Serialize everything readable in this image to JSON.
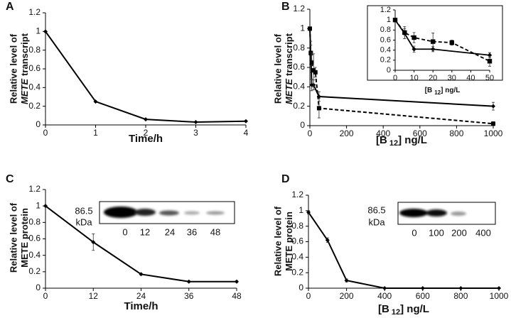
{
  "chart_data": [
    {
      "type": "line",
      "panel_label": "A",
      "ylabel": [
        "Relative level of",
        "METE",
        "transcript"
      ],
      "ylabel_italic": [
        false,
        true,
        false
      ],
      "xlabel": [
        "Time/h"
      ],
      "xlim": [
        0,
        4
      ],
      "xticks": [
        0,
        1,
        2,
        3,
        4
      ],
      "ylim": [
        0,
        1.2
      ],
      "yticks": [
        0,
        0.2,
        0.4,
        0.6,
        0.8,
        1,
        1.2
      ],
      "series": [
        {
          "x": [
            0,
            1,
            2,
            3,
            4
          ],
          "values": [
            1,
            0.25,
            0.06,
            0.03,
            0.04
          ],
          "color": "#000000",
          "dash": false,
          "marker": "diamond"
        }
      ]
    },
    {
      "type": "line",
      "panel_label": "B",
      "ylabel": [
        "Relative level of",
        "METE",
        "transcript"
      ],
      "ylabel_italic": [
        false,
        true,
        false
      ],
      "xlabel": [
        "[B",
        "12",
        "] ng/L"
      ],
      "xlim": [
        0,
        1000
      ],
      "xticks": [
        0,
        200,
        400,
        600,
        800,
        1000
      ],
      "ylim": [
        0,
        1.2
      ],
      "yticks": [
        0,
        0.2,
        0.4,
        0.6,
        0.8,
        1,
        1.2
      ],
      "series": [
        {
          "x": [
            0,
            5,
            10,
            20,
            50,
            1000
          ],
          "values": [
            1,
            0.73,
            0.42,
            0.42,
            0.3,
            0.2
          ],
          "errors": [
            0,
            0.1,
            0.06,
            0.05,
            0.05,
            0.04
          ],
          "color": "#000000",
          "dash": false,
          "marker": "diamond"
        },
        {
          "x": [
            0,
            5,
            10,
            20,
            30,
            50,
            1000
          ],
          "values": [
            1,
            0.75,
            0.65,
            0.57,
            0.55,
            0.18,
            0.02
          ],
          "errors": [
            0,
            0.12,
            0.1,
            0.17,
            0.05,
            0.1,
            0.02
          ],
          "color": "#000000",
          "dash": true,
          "marker": "square"
        }
      ]
    },
    {
      "type": "line",
      "inset": true,
      "xlabel": [
        "[B",
        "12",
        "] ng/L"
      ],
      "xlim": [
        0,
        50
      ],
      "xticks": [
        0,
        10,
        20,
        30,
        40,
        50
      ],
      "ylim": [
        0,
        1.2
      ],
      "yticks": [
        0,
        0.2,
        0.4,
        0.6,
        0.8,
        1,
        1.2
      ],
      "series": [
        {
          "x": [
            0,
            5,
            10,
            20,
            50
          ],
          "values": [
            1,
            0.73,
            0.42,
            0.42,
            0.3
          ],
          "errors": [
            0,
            0.1,
            0.06,
            0.05,
            0.05
          ],
          "color": "#000000",
          "dash": false,
          "marker": "diamond"
        },
        {
          "x": [
            0,
            5,
            10,
            20,
            30,
            50
          ],
          "values": [
            1,
            0.75,
            0.65,
            0.57,
            0.55,
            0.18
          ],
          "errors": [
            0,
            0.12,
            0.1,
            0.17,
            0.05,
            0.1
          ],
          "color": "#000000",
          "dash": true,
          "marker": "square"
        }
      ]
    },
    {
      "type": "line",
      "panel_label": "C",
      "ylabel": [
        "Relative level of",
        "METE protein"
      ],
      "ylabel_italic": [
        false,
        false
      ],
      "xlabel": [
        "Time/h"
      ],
      "xlim": [
        0,
        48
      ],
      "xticks": [
        0,
        12,
        24,
        36,
        48
      ],
      "ylim": [
        0,
        1.2
      ],
      "yticks": [
        0,
        0.2,
        0.4,
        0.6,
        0.8,
        1,
        1.2
      ],
      "series": [
        {
          "x": [
            0,
            12,
            24,
            36,
            48
          ],
          "values": [
            1,
            0.56,
            0.17,
            0.08,
            0.08
          ],
          "errors": [
            0,
            0.1,
            0.01,
            0.01,
            0.01
          ],
          "color": "#000000",
          "dash": false,
          "marker": "diamond"
        }
      ],
      "blot": {
        "size": "86.5",
        "unit": "kDa",
        "lanes": [
          "0",
          "12",
          "24",
          "36",
          "48"
        ]
      }
    },
    {
      "type": "line",
      "panel_label": "D",
      "ylabel": [
        "Relative level of",
        "METE protein"
      ],
      "ylabel_italic": [
        false,
        false
      ],
      "xlabel": [
        "[B",
        "12",
        "] ng/L"
      ],
      "xlim": [
        0,
        1000
      ],
      "xticks": [
        0,
        200,
        400,
        600,
        800,
        1000
      ],
      "ylim": [
        0,
        1.2
      ],
      "yticks": [
        0,
        0.2,
        0.4,
        0.6,
        0.8,
        1,
        1.2
      ],
      "series": [
        {
          "x": [
            0,
            100,
            200,
            400,
            600,
            800,
            1000
          ],
          "values": [
            0.98,
            0.62,
            0.1,
            0,
            0,
            0,
            0
          ],
          "errors": [
            0.02,
            0.03,
            0.02,
            0,
            0,
            0,
            0
          ],
          "color": "#000000",
          "dash": false,
          "marker": "diamond"
        }
      ],
      "blot": {
        "size": "86.5",
        "unit": "kDa",
        "lanes": [
          "0",
          "100",
          "200",
          "400"
        ]
      }
    }
  ]
}
